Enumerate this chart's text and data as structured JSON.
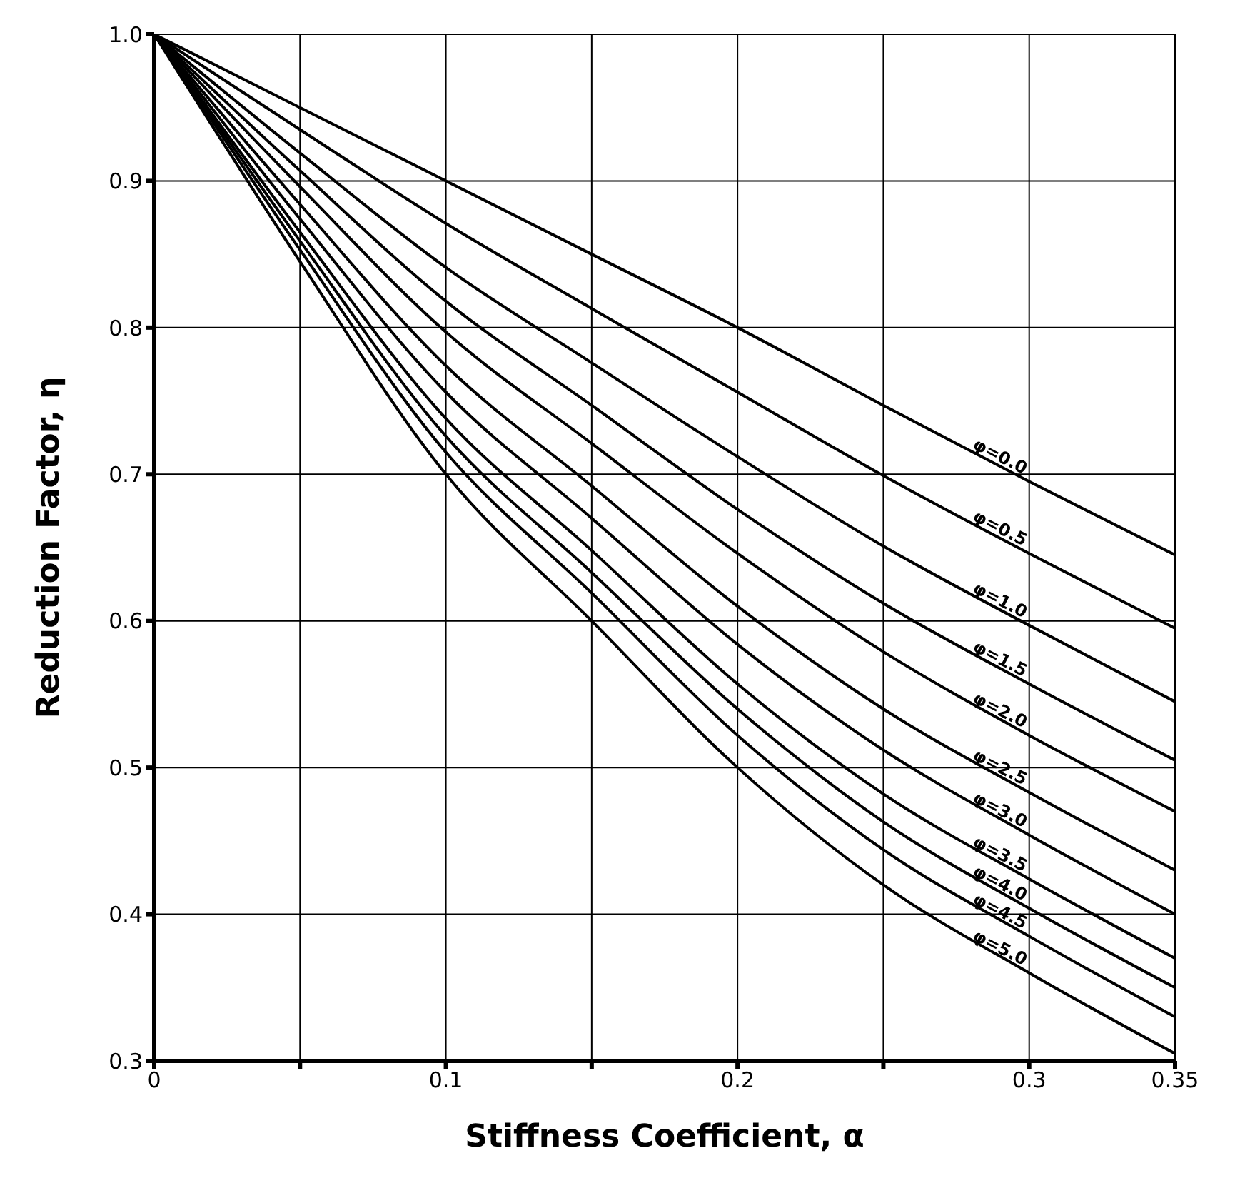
{
  "chart_data": {
    "type": "line",
    "xlabel": "Stiffness Coefficient, α",
    "ylabel": "Reduction Factor, η",
    "x": [
      0,
      0.05,
      0.1,
      0.15,
      0.2,
      0.25,
      0.3,
      0.35
    ],
    "series": [
      {
        "name": "φ=0.0",
        "color": "#000000",
        "values": [
          1,
          0.95,
          0.9,
          0.85,
          0.8,
          0.747,
          0.695,
          0.645
        ]
      },
      {
        "name": "φ=0.5",
        "color": "#000000",
        "values": [
          1,
          0.935,
          0.871,
          0.813,
          0.756,
          0.699,
          0.646,
          0.595
        ]
      },
      {
        "name": "φ=1.0",
        "color": "#000000",
        "values": [
          1,
          0.919,
          0.841,
          0.776,
          0.712,
          0.651,
          0.597,
          0.545
        ]
      },
      {
        "name": "φ=1.5",
        "color": "#000000",
        "values": [
          1,
          0.907,
          0.818,
          0.747,
          0.676,
          0.612,
          0.557,
          0.505
        ]
      },
      {
        "name": "φ=2.0",
        "color": "#000000",
        "values": [
          1,
          0.896,
          0.797,
          0.721,
          0.646,
          0.579,
          0.522,
          0.47
        ]
      },
      {
        "name": "φ=2.5",
        "color": "#000000",
        "values": [
          1,
          0.884,
          0.774,
          0.692,
          0.61,
          0.54,
          0.483,
          0.43
        ]
      },
      {
        "name": "φ=3.0",
        "color": "#000000",
        "values": [
          1,
          0.874,
          0.756,
          0.67,
          0.584,
          0.512,
          0.454,
          0.4
        ]
      },
      {
        "name": "φ=3.5",
        "color": "#000000",
        "values": [
          1,
          0.865,
          0.738,
          0.648,
          0.557,
          0.482,
          0.424,
          0.37
        ]
      },
      {
        "name": "φ=4.0",
        "color": "#000000",
        "values": [
          1,
          0.859,
          0.726,
          0.633,
          0.54,
          0.463,
          0.404,
          0.35
        ]
      },
      {
        "name": "φ=4.5",
        "color": "#000000",
        "values": [
          1,
          0.853,
          0.715,
          0.619,
          0.522,
          0.444,
          0.385,
          0.33
        ]
      },
      {
        "name": "φ=5.0",
        "color": "#000000",
        "values": [
          1,
          0.845,
          0.7,
          0.6,
          0.5,
          0.42,
          0.36,
          0.305
        ]
      }
    ],
    "xlim": [
      0,
      0.35
    ],
    "xticks": [
      0,
      {
        "value": 0.05,
        "label": null
      },
      0.1,
      {
        "value": 0.15,
        "label": null
      },
      0.2,
      {
        "value": 0.25,
        "label": null
      },
      0.3,
      0.35
    ],
    "ylim": [
      0.3,
      1
    ],
    "yticks": [
      0.3,
      0.4,
      0.5,
      0.6,
      0.7,
      0.8,
      0.9,
      {
        "value": 1,
        "label": "1.0"
      }
    ],
    "grid": true,
    "legend": false,
    "marker": "none",
    "line_style": "solid"
  }
}
